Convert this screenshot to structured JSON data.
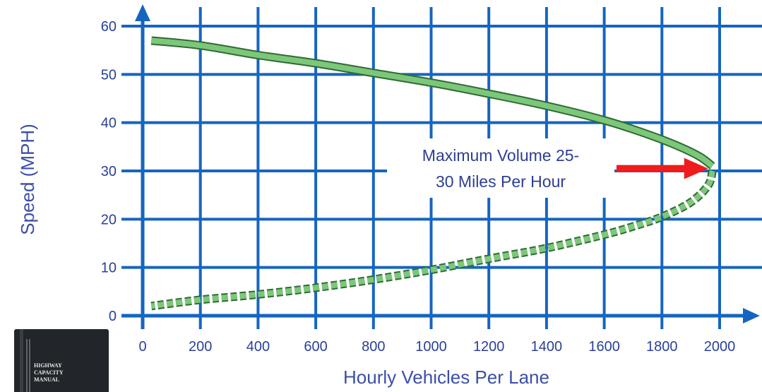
{
  "chart_data": {
    "type": "line",
    "title": "",
    "xlabel": "Hourly Vehicles Per Lane",
    "ylabel": "Speed (MPH)",
    "xlim": [
      0,
      2000
    ],
    "ylim": [
      0,
      60
    ],
    "x_ticks": [
      "0",
      "200",
      "400",
      "600",
      "800",
      "1000",
      "1200",
      "1400",
      "1600",
      "1800",
      "2000"
    ],
    "y_ticks": [
      "0",
      "10",
      "20",
      "30",
      "40",
      "50",
      "60"
    ],
    "grid": true,
    "colors": {
      "grid": "#1565c0",
      "curve": "#7cc77a",
      "curve_edge": "#2f6b34",
      "arrow": "#ee1c1c",
      "text": "#2e3f93"
    },
    "series": [
      {
        "style": "solid",
        "x": [
          30,
          200,
          400,
          600,
          800,
          1000,
          1200,
          1400,
          1600,
          1750,
          1850,
          1930,
          1975
        ],
        "y": [
          57,
          56,
          54,
          52.3,
          50.3,
          48.3,
          46,
          43.5,
          40.5,
          37.6,
          35.3,
          33,
          31
        ]
      },
      {
        "style": "dashed",
        "x": [
          1975,
          1960,
          1900,
          1800,
          1700,
          1600,
          1400,
          1200,
          1000,
          800,
          600,
          400,
          200,
          30
        ],
        "y": [
          30,
          27,
          23.5,
          20.5,
          18.5,
          16.8,
          14,
          11.8,
          9.5,
          7.5,
          5.8,
          4.4,
          3.3,
          2
        ]
      }
    ],
    "annotation": {
      "lines": [
        "Maximum Volume 25-",
        "30 Miles Per Hour"
      ],
      "target": {
        "x": 1975,
        "y": 30.5
      }
    }
  },
  "thumbnail": {
    "icon": "book-cover-icon",
    "lines": [
      "HIGHWAY",
      "CAPACITY",
      "MANUAL"
    ]
  }
}
